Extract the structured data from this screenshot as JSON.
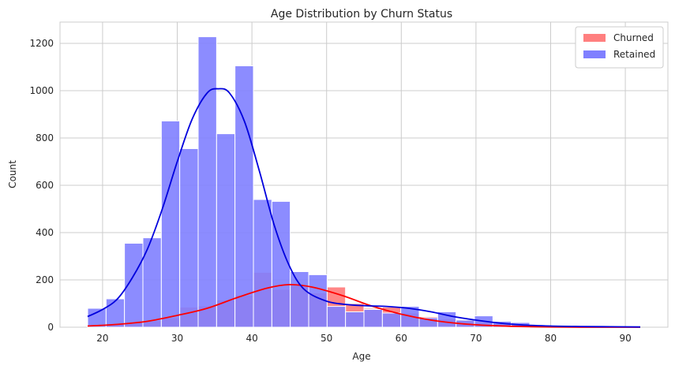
{
  "chart_data": {
    "type": "bar",
    "subtype": "overlapping histogram with KDE",
    "title": "Age Distribution by Churn Status",
    "xlabel": "Age",
    "ylabel": "Count",
    "xlim": [
      14.3,
      95.7
    ],
    "ylim": [
      0,
      1290
    ],
    "xticks": [
      20,
      30,
      40,
      50,
      60,
      70,
      80,
      90
    ],
    "yticks": [
      0,
      200,
      400,
      600,
      800,
      1000,
      1200
    ],
    "grid": true,
    "legend_position": "top-right",
    "bin_edges": [
      18,
      20.47,
      22.93,
      25.4,
      27.87,
      30.33,
      32.8,
      35.27,
      37.73,
      40.2,
      42.67,
      45.13,
      47.6,
      50.07,
      52.53,
      55.0,
      57.47,
      59.93,
      62.4,
      64.87,
      67.33,
      69.8,
      72.27,
      74.73,
      77.2
    ],
    "series": [
      {
        "name": "Churned",
        "color": "#ff7f7f",
        "kde_color": "#ff0000",
        "values": [
          3,
          15,
          20,
          28,
          40,
          85,
          90,
          115,
          135,
          232,
          160,
          180,
          145,
          170,
          100,
          80,
          85,
          60,
          45,
          35,
          30,
          20,
          15,
          10
        ],
        "kde": [
          [
            18,
            5
          ],
          [
            22,
            12
          ],
          [
            26,
            25
          ],
          [
            30,
            50
          ],
          [
            34,
            80
          ],
          [
            38,
            125
          ],
          [
            42,
            165
          ],
          [
            45,
            180
          ],
          [
            48,
            170
          ],
          [
            52,
            135
          ],
          [
            56,
            90
          ],
          [
            60,
            55
          ],
          [
            64,
            30
          ],
          [
            68,
            15
          ],
          [
            72,
            7
          ],
          [
            76,
            3
          ],
          [
            80,
            1
          ],
          [
            84,
            0
          ],
          [
            88,
            0
          ],
          [
            92,
            0
          ]
        ]
      },
      {
        "name": "Retained",
        "color": "#7f7fff",
        "kde_color": "#0000dd",
        "values": [
          80,
          120,
          355,
          378,
          872,
          755,
          1228,
          818,
          1105,
          540,
          532,
          235,
          222,
          88,
          65,
          75,
          60,
          88,
          40,
          65,
          30,
          48,
          25,
          20
        ],
        "kde": [
          [
            18,
            45
          ],
          [
            20,
            75
          ],
          [
            22,
            120
          ],
          [
            24,
            210
          ],
          [
            26,
            330
          ],
          [
            28,
            500
          ],
          [
            30,
            700
          ],
          [
            32,
            880
          ],
          [
            34,
            990
          ],
          [
            35.5,
            1008
          ],
          [
            37,
            990
          ],
          [
            39,
            870
          ],
          [
            41,
            660
          ],
          [
            43,
            430
          ],
          [
            45,
            260
          ],
          [
            47,
            160
          ],
          [
            50,
            110
          ],
          [
            53,
            95
          ],
          [
            56,
            90
          ],
          [
            58,
            88
          ],
          [
            61,
            80
          ],
          [
            64,
            65
          ],
          [
            67,
            45
          ],
          [
            70,
            30
          ],
          [
            73,
            18
          ],
          [
            76,
            10
          ],
          [
            80,
            5
          ],
          [
            84,
            3
          ],
          [
            88,
            2
          ],
          [
            92,
            1
          ]
        ]
      }
    ]
  }
}
